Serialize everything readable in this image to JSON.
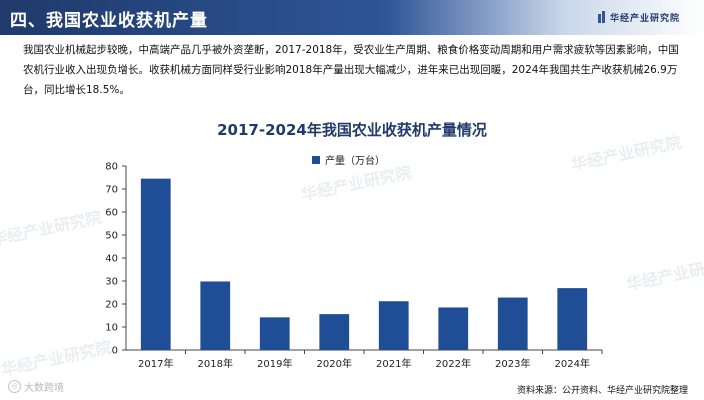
{
  "header": {
    "title": "四、我国农业收获机产量",
    "brand": "华经产业研究院",
    "accent_color": "#2f5597"
  },
  "intro_text": "我国农业机械起步较晚，中高端产品几乎被外资垄断，2017-2018年，受农业生产周期、粮食价格变动周期和用户需求疲软等因素影响，中国农机行业收入出现负增长。收获机械方面同样受行业影响2018年产量出现大幅减少，进年来已出现回暖，2024年我国共生产收获机械26.9万台，同比增长18.5%。",
  "chart_data": {
    "type": "bar",
    "title": "2017-2024年我国农业收获机产量情况",
    "categories": [
      "2017年",
      "2018年",
      "2019年",
      "2020年",
      "2021年",
      "2022年",
      "2023年",
      "2024年"
    ],
    "series": [
      {
        "name": "产量（万台）",
        "values": [
          74.5,
          29.8,
          14.2,
          15.6,
          21.2,
          18.5,
          22.8,
          26.9
        ],
        "color": "#1f4e96"
      }
    ],
    "yticks": [
      0,
      10,
      20,
      30,
      40,
      50,
      60,
      70,
      80
    ],
    "ylim": [
      0,
      80
    ],
    "grid": false,
    "legend_position": "top"
  },
  "watermarks": [
    "华经产业研究院",
    "华经产业研究院",
    "华经产业研究院",
    "华经产业研究院",
    "华经产业研究院"
  ],
  "footer": {
    "source": "资料来源：公开资料、华经产业研究院整理",
    "mark": "大数跨境"
  }
}
